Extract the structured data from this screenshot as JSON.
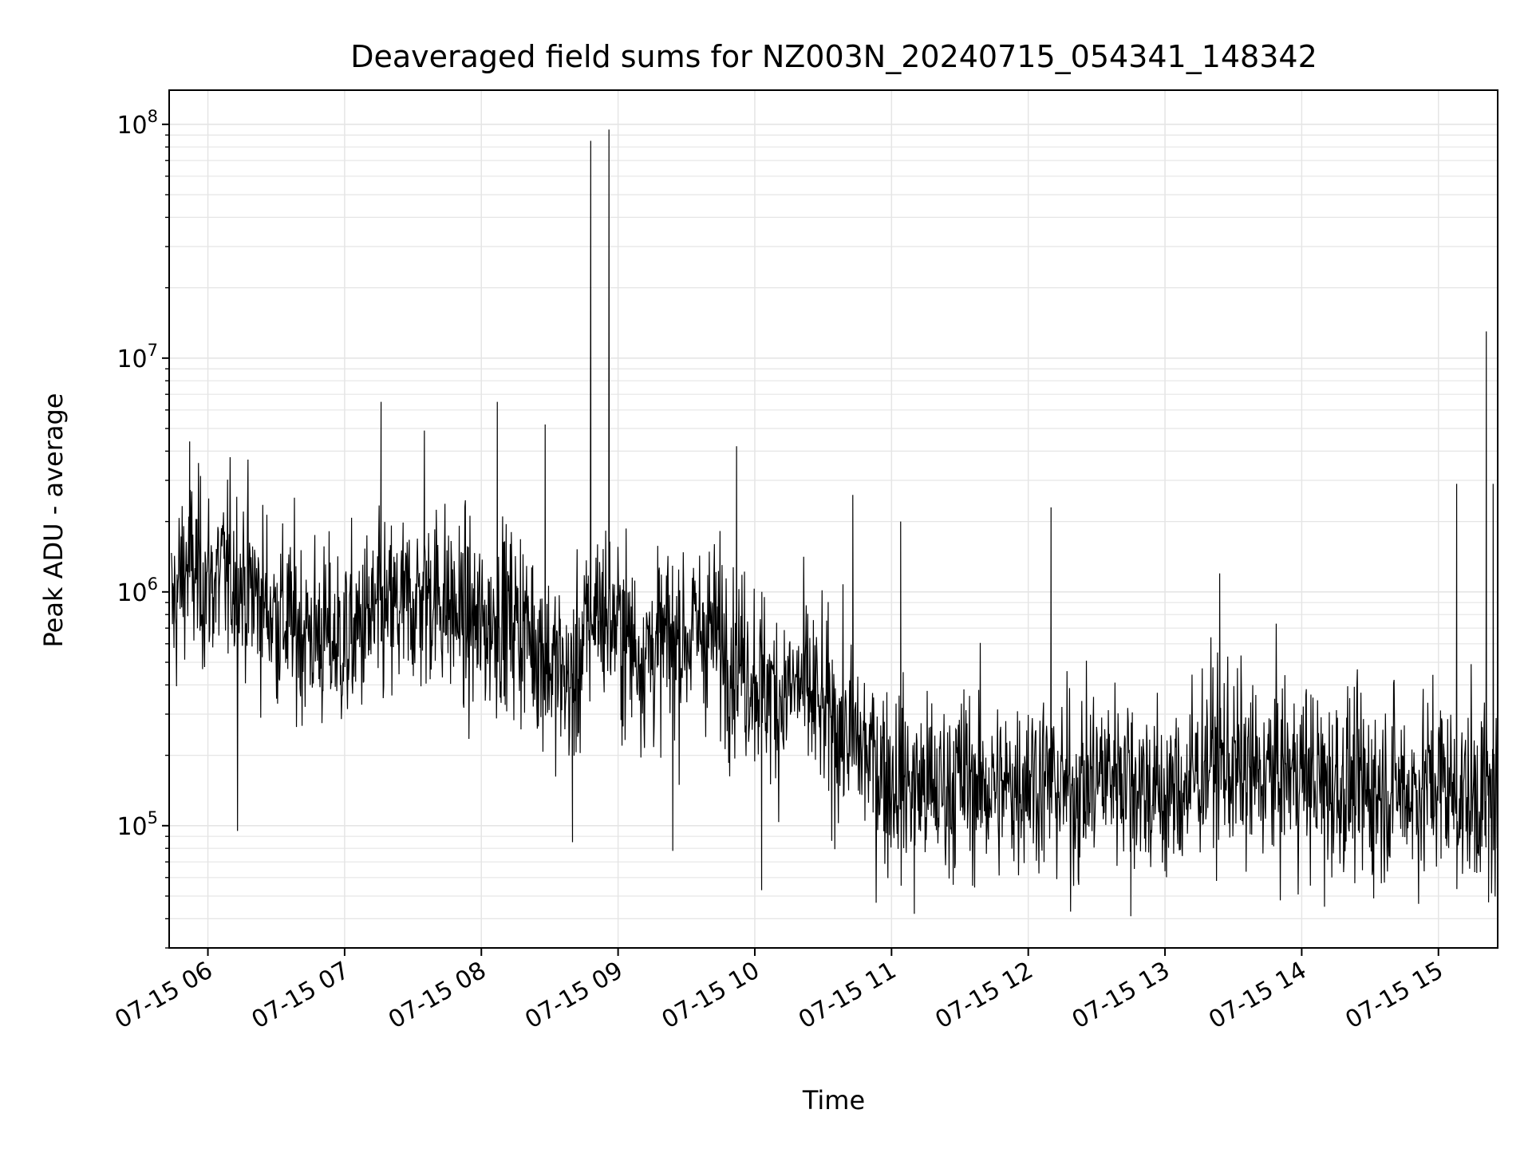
{
  "chart_data": {
    "type": "line",
    "title": "Deaveraged field sums for NZ003N_20240715_054341_148342",
    "xlabel": "Time",
    "ylabel": "Peak ADU - average",
    "yscale": "log",
    "ylim": [
      30000,
      140000000
    ],
    "xlim": [
      "2024-07-15 05:43",
      "2024-07-15 15:26"
    ],
    "grid": true,
    "line_color": "#000000",
    "grid_color": "#e5e5e5",
    "x_ticks": [
      {
        "value": "2024-07-15 06:00",
        "label": "07-15 06"
      },
      {
        "value": "2024-07-15 07:00",
        "label": "07-15 07"
      },
      {
        "value": "2024-07-15 08:00",
        "label": "07-15 08"
      },
      {
        "value": "2024-07-15 09:00",
        "label": "07-15 09"
      },
      {
        "value": "2024-07-15 10:00",
        "label": "07-15 10"
      },
      {
        "value": "2024-07-15 11:00",
        "label": "07-15 11"
      },
      {
        "value": "2024-07-15 12:00",
        "label": "07-15 12"
      },
      {
        "value": "2024-07-15 13:00",
        "label": "07-15 13"
      },
      {
        "value": "2024-07-15 14:00",
        "label": "07-15 14"
      },
      {
        "value": "2024-07-15 15:00",
        "label": "07-15 15"
      }
    ],
    "y_ticks": [
      {
        "value": 100000,
        "base": "10",
        "exp": "5"
      },
      {
        "value": 1000000,
        "base": "10",
        "exp": "6"
      },
      {
        "value": 10000000,
        "base": "10",
        "exp": "7"
      },
      {
        "value": 100000000,
        "base": "10",
        "exp": "8"
      }
    ],
    "series": [
      {
        "x": [
          "2024-07-15 05:44",
          "2024-07-15 05:50",
          "2024-07-15 06:00",
          "2024-07-15 06:10",
          "2024-07-15 06:20",
          "2024-07-15 06:30",
          "2024-07-15 06:40",
          "2024-07-15 06:50",
          "2024-07-15 07:00",
          "2024-07-15 07:10",
          "2024-07-15 07:20",
          "2024-07-15 07:30",
          "2024-07-15 07:40",
          "2024-07-15 07:50",
          "2024-07-15 08:00",
          "2024-07-15 08:10",
          "2024-07-15 08:20",
          "2024-07-15 08:30",
          "2024-07-15 08:40",
          "2024-07-15 08:50",
          "2024-07-15 09:00",
          "2024-07-15 09:10",
          "2024-07-15 09:20",
          "2024-07-15 09:30",
          "2024-07-15 09:40",
          "2024-07-15 09:50",
          "2024-07-15 10:00",
          "2024-07-15 10:10",
          "2024-07-15 10:20",
          "2024-07-15 10:30",
          "2024-07-15 10:40",
          "2024-07-15 10:50",
          "2024-07-15 11:00",
          "2024-07-15 11:10",
          "2024-07-15 11:20",
          "2024-07-15 11:30",
          "2024-07-15 11:40",
          "2024-07-15 11:50",
          "2024-07-15 12:00",
          "2024-07-15 12:10",
          "2024-07-15 12:20",
          "2024-07-15 12:30",
          "2024-07-15 12:40",
          "2024-07-15 12:50",
          "2024-07-15 13:00",
          "2024-07-15 13:10",
          "2024-07-15 13:20",
          "2024-07-15 13:30",
          "2024-07-15 13:40",
          "2024-07-15 13:50",
          "2024-07-15 14:00",
          "2024-07-15 14:10",
          "2024-07-15 14:20",
          "2024-07-15 14:30",
          "2024-07-15 14:40",
          "2024-07-15 14:50",
          "2024-07-15 15:00",
          "2024-07-15 15:10",
          "2024-07-15 15:20",
          "2024-07-15 15:26"
        ],
        "typical": [
          800000,
          1300000,
          1100000,
          1200000,
          1000000,
          800000,
          700000,
          650000,
          600000,
          750000,
          800000,
          900000,
          1000000,
          800000,
          700000,
          800000,
          700000,
          500000,
          400000,
          900000,
          700000,
          550000,
          600000,
          650000,
          700000,
          550000,
          450000,
          350000,
          400000,
          300000,
          250000,
          200000,
          160000,
          150000,
          140000,
          160000,
          150000,
          140000,
          170000,
          150000,
          140000,
          160000,
          180000,
          150000,
          130000,
          150000,
          200000,
          180000,
          160000,
          170000,
          170000,
          150000,
          150000,
          140000,
          150000,
          140000,
          160000,
          130000,
          140000,
          120000
        ],
        "spikes": [
          {
            "x": "2024-07-15 05:52",
            "y": 4400000
          },
          {
            "x": "2024-07-15 06:13",
            "y": 95000
          },
          {
            "x": "2024-07-15 07:16",
            "y": 6500000
          },
          {
            "x": "2024-07-15 07:35",
            "y": 4900000
          },
          {
            "x": "2024-07-15 08:07",
            "y": 6500000
          },
          {
            "x": "2024-07-15 08:28",
            "y": 5200000
          },
          {
            "x": "2024-07-15 08:40",
            "y": 85000
          },
          {
            "x": "2024-07-15 08:48",
            "y": 85000000
          },
          {
            "x": "2024-07-15 08:56",
            "y": 95000000
          },
          {
            "x": "2024-07-15 09:24",
            "y": 78000
          },
          {
            "x": "2024-07-15 09:52",
            "y": 4200000
          },
          {
            "x": "2024-07-15 10:03",
            "y": 53000
          },
          {
            "x": "2024-07-15 10:43",
            "y": 2600000
          },
          {
            "x": "2024-07-15 11:04",
            "y": 2000000
          },
          {
            "x": "2024-07-15 11:10",
            "y": 42000
          },
          {
            "x": "2024-07-15 12:10",
            "y": 2300000
          },
          {
            "x": "2024-07-15 12:45",
            "y": 41000
          },
          {
            "x": "2024-07-15 13:24",
            "y": 1200000
          },
          {
            "x": "2024-07-15 14:10",
            "y": 45000
          },
          {
            "x": "2024-07-15 15:08",
            "y": 2900000
          },
          {
            "x": "2024-07-15 15:21",
            "y": 13000000
          },
          {
            "x": "2024-07-15 15:22",
            "y": 47000
          },
          {
            "x": "2024-07-15 15:24",
            "y": 2900000
          }
        ]
      }
    ]
  }
}
